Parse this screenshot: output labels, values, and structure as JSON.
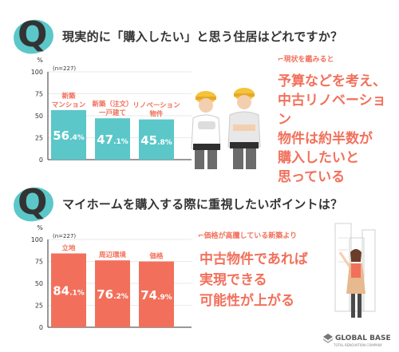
{
  "chart_data": [
    {
      "type": "bar",
      "title": "現実的に「購入したい」と思う住居はどれですか？",
      "unit": "%",
      "note": "(n=227)",
      "ylim": [
        0,
        100
      ],
      "yticks": [
        0,
        25,
        50,
        75,
        100
      ],
      "categories": [
        "新築\nマンション",
        "新築（注文）\n一戸建て",
        "リノベーション\n物件"
      ],
      "values": [
        56.4,
        47.1,
        45.8
      ],
      "value_labels": [
        [
          "56",
          ".4%"
        ],
        [
          "47",
          ".1%"
        ],
        [
          "45",
          ".8%"
        ]
      ],
      "colors": [
        "#5bc7c9",
        "#5bc7c9",
        "#5bc7c9"
      ],
      "label_color": "#f2705b"
    },
    {
      "type": "bar",
      "title": "マイホームを購入する際に重視したいポイントは？",
      "unit": "%",
      "note": "(n=227)",
      "ylim": [
        0,
        100
      ],
      "yticks": [
        0,
        25,
        50,
        75,
        100
      ],
      "categories": [
        "立地",
        "周辺環境",
        "価格"
      ],
      "values": [
        84.1,
        76.2,
        74.9
      ],
      "value_labels": [
        [
          "84",
          ".1%"
        ],
        [
          "76",
          ".2%"
        ],
        [
          "74",
          ".9%"
        ]
      ],
      "colors": [
        "#f2705b",
        "#f2705b",
        "#f2705b"
      ],
      "label_color": "#f2705b"
    }
  ],
  "q1": {
    "mark": "Q",
    "subtitle": "現状を鑑みると",
    "lines": [
      "予算などを考え、",
      "中古リノベーション",
      "物件は約半数が",
      "購入したいと",
      "思っている"
    ]
  },
  "q2": {
    "mark": "Q",
    "subtitle": "価格が高騰している新築より",
    "lines": [
      "中古物件であれば",
      "実現できる",
      "可能性が上がる"
    ]
  },
  "logo": {
    "name": "GLOBAL BASE",
    "tagline": "TOTAL RENOVATION COMPANY"
  },
  "colors": {
    "teal": "#5bc7c9",
    "coral": "#f2705b",
    "text": "#333333"
  }
}
